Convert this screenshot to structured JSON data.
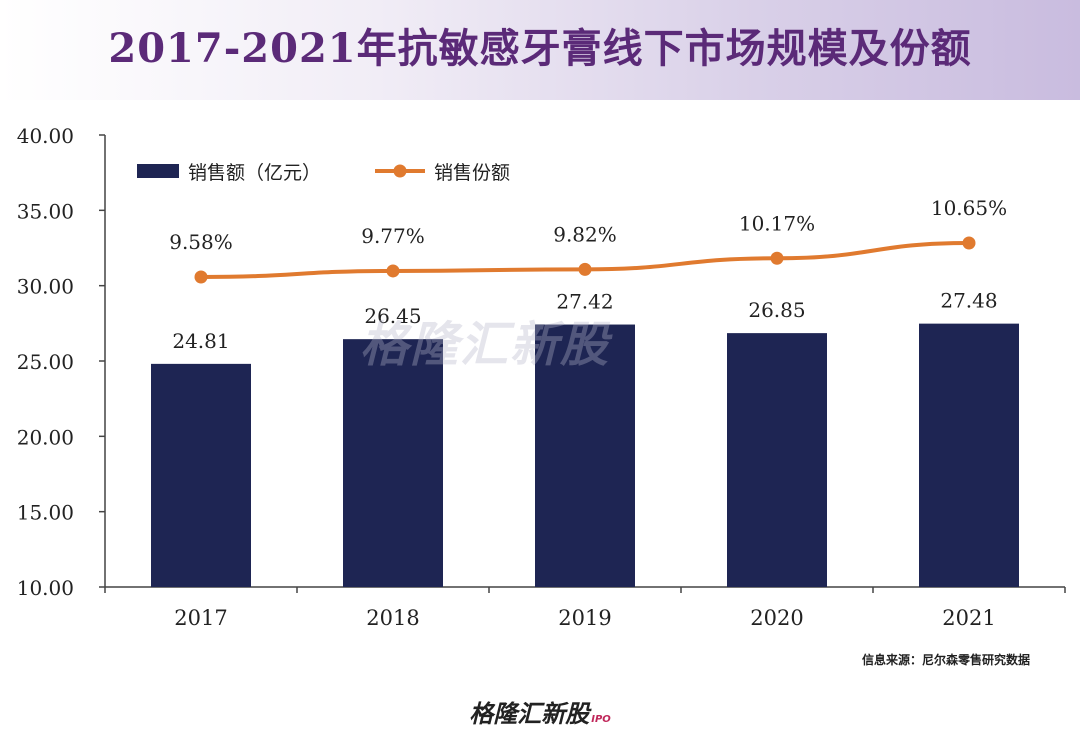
{
  "title": "2017-2021年抗敏感牙膏线下市场规模及份额",
  "source": "信息来源：尼尔森零售研究数据",
  "watermark": "格隆汇新股",
  "logo": {
    "text": "格隆汇新股",
    "suffix": "IPO"
  },
  "colors": {
    "bar": "#1e2553",
    "line": "#e07a2f",
    "title": "#5b2a78"
  },
  "chart_data": {
    "type": "bar",
    "categories": [
      "2017",
      "2018",
      "2019",
      "2020",
      "2021"
    ],
    "ylim": [
      10,
      40
    ],
    "yticks": [
      "10.00",
      "15.00",
      "20.00",
      "25.00",
      "30.00",
      "35.00",
      "40.00"
    ],
    "legend_position": "top-left",
    "series": [
      {
        "name": "销售额（亿元）",
        "type": "bar",
        "values": [
          24.81,
          26.45,
          27.42,
          26.85,
          27.48
        ],
        "labels": [
          "24.81",
          "26.45",
          "27.42",
          "26.85",
          "27.48"
        ]
      },
      {
        "name": "销售份额",
        "type": "line",
        "values": [
          9.58,
          9.77,
          9.82,
          10.17,
          10.65
        ],
        "labels": [
          "9.58%",
          "9.77%",
          "9.82%",
          "10.17%",
          "10.65%"
        ]
      }
    ]
  }
}
